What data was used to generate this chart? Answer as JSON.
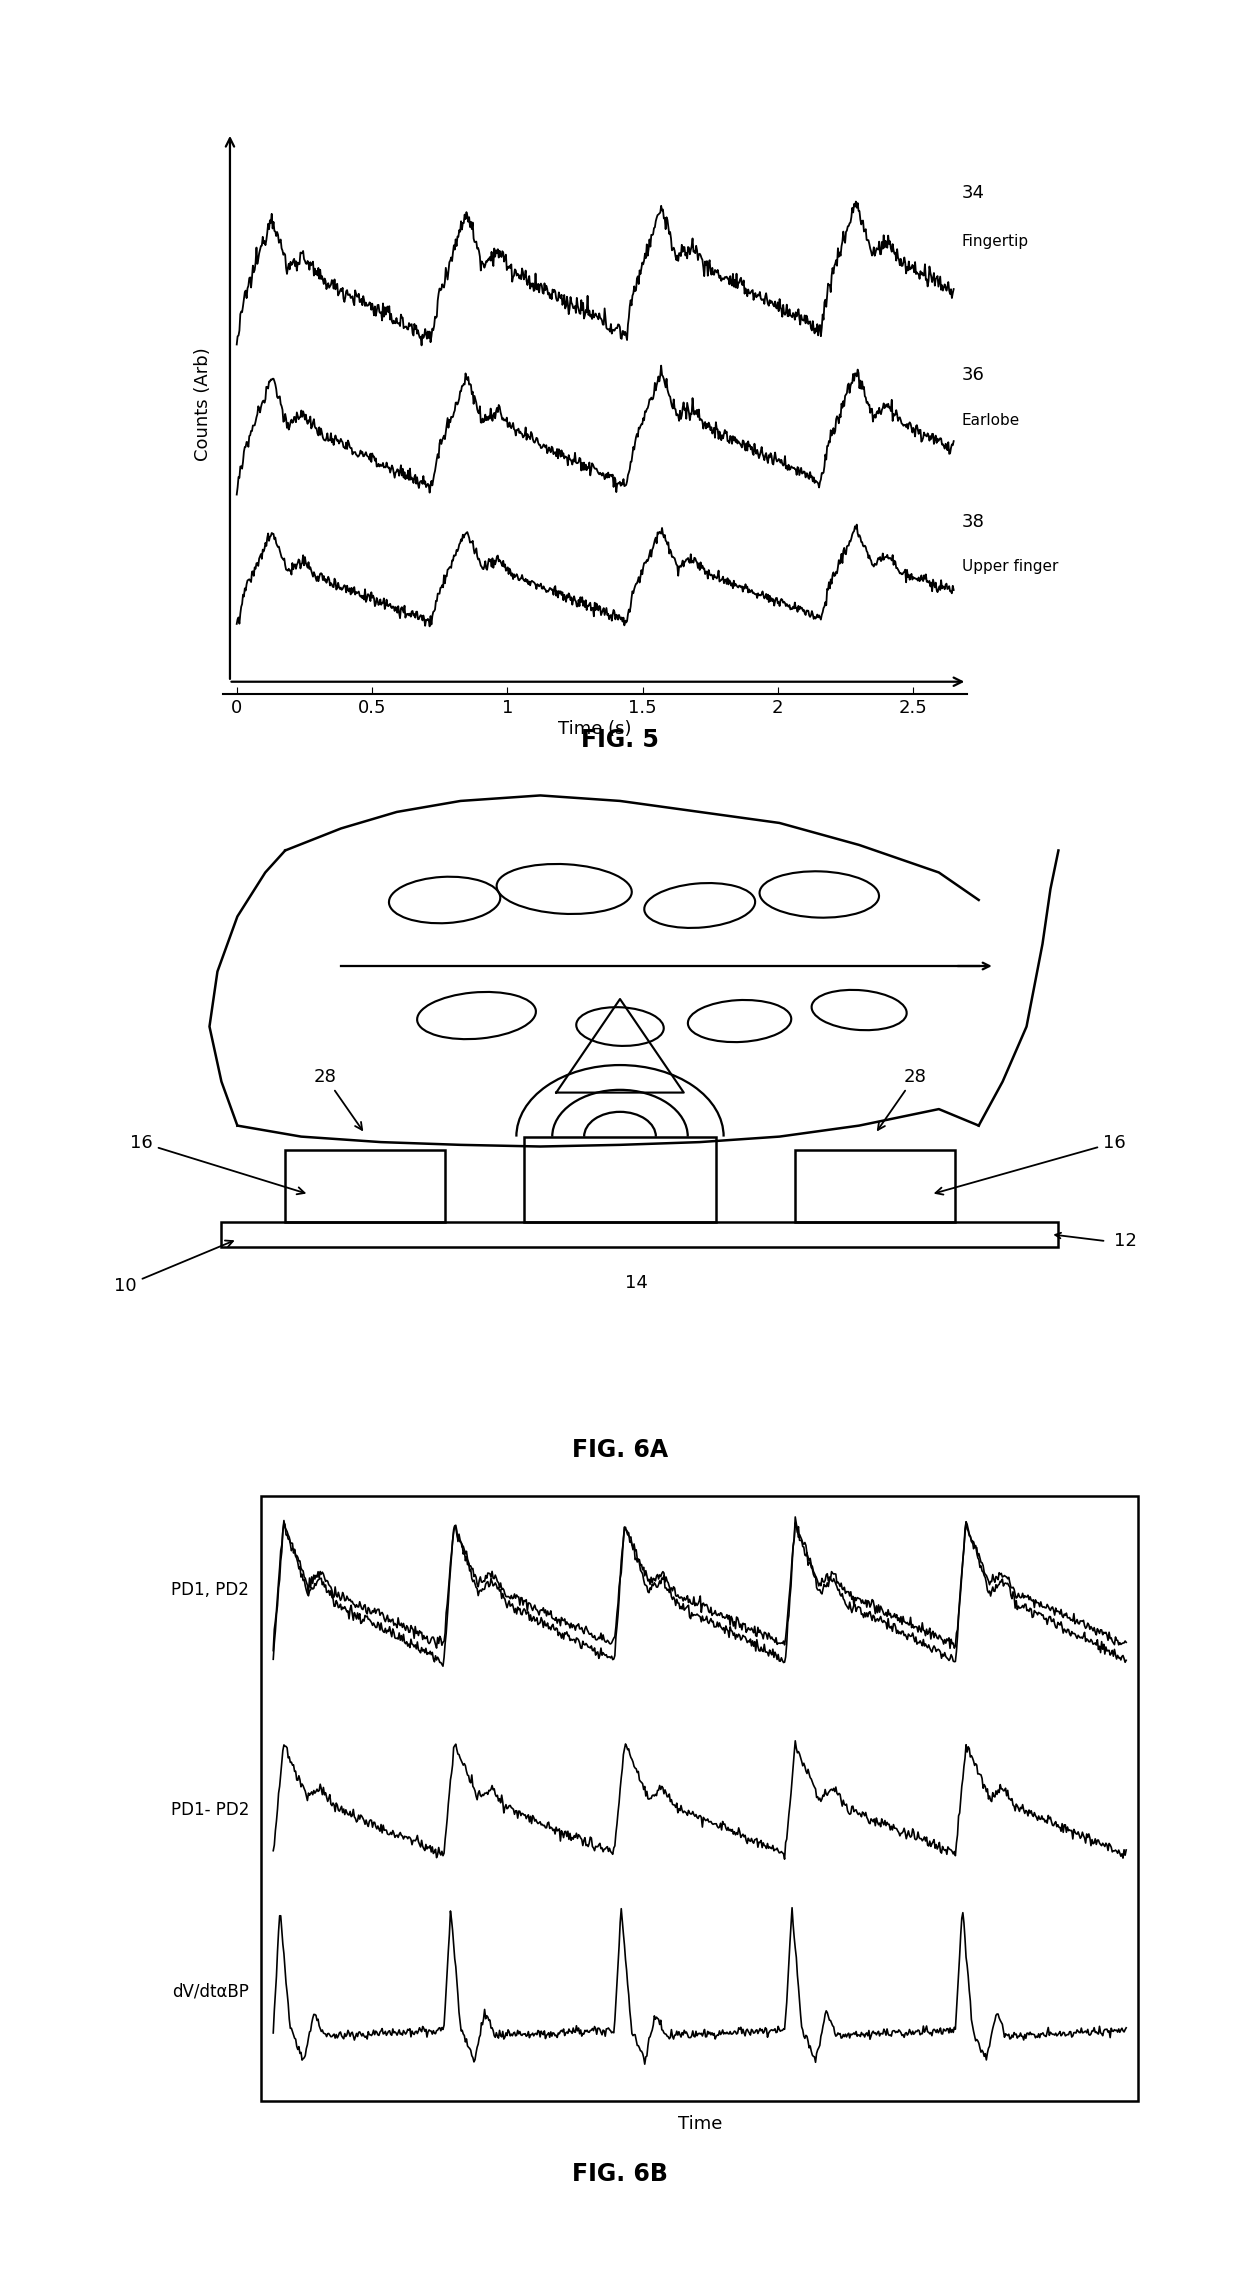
{
  "fig5": {
    "title": "FIG. 5",
    "ylabel": "Counts (Arb)",
    "xlabel": "Time (s)",
    "xticks": [
      0,
      0.5,
      1,
      1.5,
      2,
      2.5
    ],
    "num_labels": [
      "34",
      "36",
      "38"
    ],
    "curve_labels": [
      "Fingertip",
      "Earlobe",
      "Upper finger"
    ]
  },
  "fig6a": {
    "title": "FIG. 6A",
    "labels": [
      "10",
      "12",
      "14",
      "16",
      "28"
    ]
  },
  "fig6b": {
    "title": "FIG. 6B",
    "ylabel_labels": [
      "PD1, PD2",
      "PD1- PD2",
      "dV/dtαBP"
    ],
    "xlabel": "Time"
  }
}
